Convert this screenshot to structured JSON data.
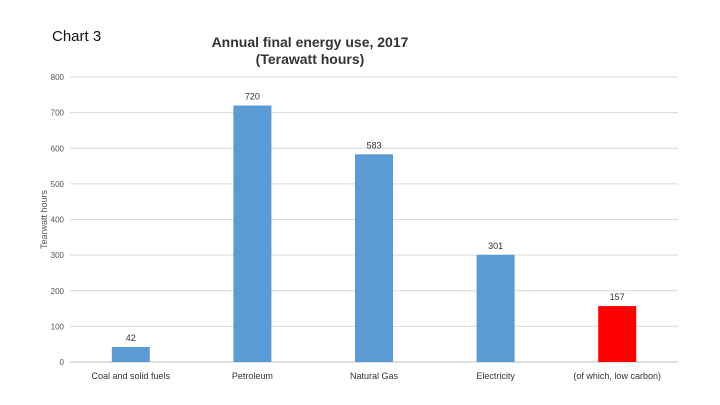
{
  "slide_label": "Chart 3",
  "chart_data": {
    "type": "bar",
    "title": "Annual final energy use, 2017",
    "subtitle": "(Terawatt hours)",
    "xlabel": "",
    "ylabel": "Tearwatt hours",
    "ylim": [
      0,
      800
    ],
    "yticks": [
      0,
      100,
      200,
      300,
      400,
      500,
      600,
      700,
      800
    ],
    "grid": true,
    "categories": [
      "Coal and solid fuels",
      "Petroleum",
      "Natural Gas",
      "Electricity",
      "(of which, low carbon)"
    ],
    "values": [
      42,
      720,
      583,
      301,
      157
    ],
    "data_labels": [
      "42",
      "720",
      "583",
      "301",
      "157"
    ],
    "colors": [
      "#5b9bd5",
      "#5b9bd5",
      "#5b9bd5",
      "#5b9bd5",
      "#ff0000"
    ]
  }
}
